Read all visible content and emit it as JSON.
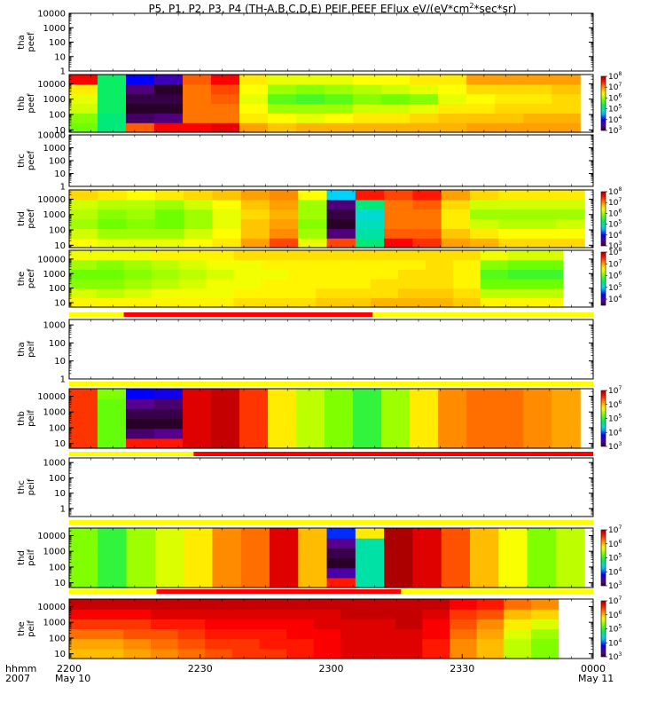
{
  "title_parts": {
    "pre": "P5, P1, P2, P3, P4 (TH-A,B,C,D,E) PEIF,PEEF EFlux eV/(eV*cm",
    "sup": "2",
    "post": "*sec*sr)"
  },
  "time_axis": {
    "label_line1": "hhmm",
    "label_line2": "2007",
    "start_date": "May 10",
    "end_date": "May 11",
    "ticks": [
      "2200",
      "2230",
      "2300",
      "2330",
      "0000"
    ],
    "range_minutes": [
      0,
      120
    ]
  },
  "chart_data": [
    {
      "type": "heatmap",
      "probe": "tha",
      "product": "peef",
      "label_line1": "tha",
      "label_line2": "peef",
      "ylim": [
        1,
        10000
      ],
      "yscale": "log",
      "y_tick_labels": [
        "1",
        "10",
        "100",
        "1000",
        "10000"
      ],
      "has_data": false,
      "colorbar": null,
      "data_end_minutes": null,
      "columns": []
    },
    {
      "type": "heatmap",
      "probe": "thb",
      "product": "peef",
      "label_line1": "thb",
      "label_line2": "peef",
      "ylim": [
        7,
        40000
      ],
      "yscale": "log",
      "y_tick_labels": [
        "10",
        "100",
        "1000",
        "10000"
      ],
      "has_data": true,
      "data_end_minutes": 117,
      "colorbar": {
        "range": [
          1000,
          100000000
        ],
        "tick_exponents": [
          3,
          4,
          5,
          6,
          7,
          8
        ]
      },
      "columns": [
        [
          5.8,
          5.9,
          6.2,
          6.3,
          6.5,
          7.6
        ],
        [
          5.2,
          5.2,
          5.3,
          5.3,
          5.3,
          5.3
        ],
        [
          7.2,
          3.2,
          3.0,
          3.1,
          3.3,
          4.0
        ],
        [
          7.6,
          3.3,
          3.0,
          3.1,
          3.0,
          3.6
        ],
        [
          7.6,
          7.1,
          7.1,
          7.1,
          7.1,
          7.2
        ],
        [
          7.7,
          7.1,
          7.1,
          7.2,
          7.3,
          7.6
        ],
        [
          6.9,
          6.5,
          6.4,
          6.3,
          6.4,
          6.5
        ],
        [
          6.7,
          6.4,
          6.0,
          5.7,
          6.0,
          6.3
        ],
        [
          6.8,
          6.3,
          6.0,
          5.6,
          5.9,
          6.3
        ],
        [
          6.8,
          6.4,
          6.0,
          5.7,
          6.0,
          6.3
        ],
        [
          6.8,
          6.5,
          6.2,
          5.9,
          6.1,
          6.4
        ],
        [
          6.8,
          6.5,
          6.2,
          5.8,
          6.2,
          6.4
        ],
        [
          6.8,
          6.6,
          6.3,
          5.9,
          6.3,
          6.5
        ],
        [
          6.8,
          6.7,
          6.5,
          6.3,
          6.4,
          6.5
        ],
        [
          6.9,
          6.7,
          6.5,
          6.4,
          6.6,
          6.9
        ],
        [
          6.9,
          6.7,
          6.6,
          6.5,
          6.6,
          6.9
        ],
        [
          6.9,
          6.8,
          6.6,
          6.5,
          6.6,
          6.9
        ],
        [
          6.9,
          6.8,
          6.6,
          6.6,
          6.7,
          6.9
        ]
      ]
    },
    {
      "type": "heatmap",
      "probe": "thc",
      "product": "peef",
      "label_line1": "thc",
      "label_line2": "peef",
      "ylim": [
        1,
        10000
      ],
      "yscale": "log",
      "y_tick_labels": [
        "1",
        "10",
        "100",
        "1000",
        "10000"
      ],
      "has_data": false,
      "colorbar": null,
      "data_end_minutes": null,
      "columns": []
    },
    {
      "type": "heatmap",
      "probe": "thd",
      "product": "peef",
      "label_line1": "thd",
      "label_line2": "peef",
      "ylim": [
        7,
        40000
      ],
      "yscale": "log",
      "y_tick_labels": [
        "10",
        "100",
        "1000",
        "10000"
      ],
      "has_data": true,
      "data_end_minutes": 118,
      "colorbar": {
        "range": [
          1000,
          100000000
        ],
        "tick_exponents": [
          3,
          4,
          5,
          6,
          7,
          8
        ]
      },
      "columns": [
        [
          6.4,
          6.2,
          6.0,
          6.1,
          6.2,
          6.6
        ],
        [
          6.3,
          6.0,
          5.8,
          5.9,
          6.1,
          6.5
        ],
        [
          6.3,
          6.0,
          5.9,
          6.0,
          6.1,
          6.4
        ],
        [
          6.3,
          6.0,
          5.8,
          5.8,
          6.0,
          6.5
        ],
        [
          6.4,
          6.2,
          6.0,
          6.0,
          6.2,
          6.6
        ],
        [
          6.5,
          6.4,
          6.3,
          6.3,
          6.4,
          6.7
        ],
        [
          6.9,
          6.7,
          6.7,
          6.6,
          6.7,
          6.9
        ],
        [
          7.3,
          7.0,
          6.9,
          6.8,
          6.9,
          7.0
        ],
        [
          6.3,
          6.0,
          5.9,
          6.0,
          6.0,
          6.4
        ],
        [
          7.3,
          3.3,
          3.0,
          3.1,
          3.3,
          4.6
        ],
        [
          5.2,
          5.0,
          4.9,
          4.8,
          5.2,
          7.5
        ],
        [
          7.6,
          7.2,
          7.1,
          7.1,
          7.1,
          7.3
        ],
        [
          7.4,
          7.2,
          7.1,
          7.1,
          7.2,
          7.5
        ],
        [
          6.9,
          6.7,
          6.5,
          6.5,
          6.6,
          6.9
        ],
        [
          6.8,
          6.5,
          6.2,
          6.0,
          6.2,
          6.6
        ],
        [
          6.6,
          6.4,
          6.1,
          6.0,
          6.2,
          6.5
        ],
        [
          6.6,
          6.4,
          6.1,
          6.0,
          6.2,
          6.5
        ],
        [
          6.6,
          6.4,
          6.2,
          6.0,
          6.2,
          6.5
        ]
      ]
    },
    {
      "type": "heatmap",
      "probe": "the",
      "product": "peef",
      "label_line1": "the",
      "label_line2": "peef",
      "ylim": [
        5,
        40000
      ],
      "yscale": "log",
      "y_tick_labels": [
        "10",
        "100",
        "1000",
        "10000"
      ],
      "has_data": true,
      "data_end_minutes": 113,
      "colorbar": {
        "range": [
          3000,
          100000000
        ],
        "tick_exponents": [
          4,
          5,
          6,
          7,
          8
        ]
      },
      "columns": [
        [
          6.6,
          6.4,
          6.1,
          6.0,
          6.2,
          6.5
        ],
        [
          6.6,
          6.3,
          6.1,
          6.0,
          6.1,
          6.5
        ],
        [
          6.6,
          6.4,
          6.2,
          6.1,
          6.2,
          6.5
        ],
        [
          6.6,
          6.5,
          6.3,
          6.2,
          6.3,
          6.6
        ],
        [
          6.6,
          6.5,
          6.4,
          6.3,
          6.4,
          6.6
        ],
        [
          6.6,
          6.5,
          6.5,
          6.4,
          6.5,
          6.6
        ],
        [
          6.7,
          6.6,
          6.5,
          6.5,
          6.5,
          6.7
        ],
        [
          6.7,
          6.6,
          6.6,
          6.5,
          6.6,
          6.7
        ],
        [
          6.7,
          6.6,
          6.6,
          6.6,
          6.6,
          6.7
        ],
        [
          6.8,
          6.7,
          6.6,
          6.6,
          6.6,
          6.7
        ],
        [
          6.8,
          6.7,
          6.6,
          6.6,
          6.6,
          6.7
        ],
        [
          6.9,
          6.7,
          6.7,
          6.6,
          6.6,
          6.7
        ],
        [
          6.9,
          6.8,
          6.7,
          6.7,
          6.6,
          6.7
        ],
        [
          6.9,
          6.8,
          6.7,
          6.7,
          6.7,
          6.7
        ],
        [
          6.8,
          6.7,
          6.6,
          6.6,
          6.6,
          6.7
        ],
        [
          6.6,
          6.3,
          6.0,
          5.9,
          6.1,
          6.5
        ],
        [
          6.6,
          6.3,
          6.0,
          5.8,
          6.0,
          6.4
        ],
        [
          6.6,
          6.3,
          6.0,
          5.8,
          6.0,
          6.4
        ]
      ]
    },
    {
      "type": "heatmap",
      "probe": "tha",
      "product": "peif",
      "label_line1": "tha",
      "label_line2": "peif",
      "ylim": [
        1,
        2000
      ],
      "yscale": "log",
      "y_tick_labels": [
        "1",
        "10",
        "100",
        "1000"
      ],
      "has_data": false,
      "colorbar": null,
      "data_end_minutes": null,
      "columns": []
    },
    {
      "type": "heatmap",
      "probe": "thb",
      "product": "peif",
      "label_line1": "thb",
      "label_line2": "peif",
      "ylim": [
        5,
        30000
      ],
      "yscale": "log",
      "y_tick_labels": [
        "10",
        "100",
        "1000",
        "10000"
      ],
      "has_data": true,
      "data_end_minutes": 117,
      "colorbar": {
        "range": [
          1000,
          10000000
        ],
        "tick_exponents": [
          3,
          4,
          5,
          6,
          7
        ]
      },
      "columns": [
        [
          6.5,
          6.5,
          6.5,
          6.5,
          6.5,
          6.5
        ],
        [
          5.2,
          5.2,
          5.2,
          5.2,
          5.2,
          5.3
        ],
        [
          6.6,
          3.2,
          3.0,
          3.1,
          3.3,
          3.8
        ],
        [
          6.6,
          3.3,
          3.0,
          3.1,
          3.2,
          3.7
        ],
        [
          6.8,
          6.8,
          6.8,
          6.8,
          6.8,
          6.8
        ],
        [
          6.9,
          6.9,
          6.9,
          6.9,
          6.9,
          6.9
        ],
        [
          6.5,
          6.5,
          6.5,
          6.5,
          6.5,
          6.5
        ],
        [
          5.8,
          5.8,
          5.8,
          5.8,
          5.8,
          5.8
        ],
        [
          5.5,
          5.5,
          5.5,
          5.5,
          5.5,
          5.5
        ],
        [
          5.3,
          5.3,
          5.3,
          5.3,
          5.3,
          5.3
        ],
        [
          5.0,
          5.0,
          5.0,
          5.0,
          5.0,
          5.0
        ],
        [
          5.4,
          5.4,
          5.4,
          5.4,
          5.4,
          5.4
        ],
        [
          5.8,
          5.8,
          5.8,
          5.8,
          5.8,
          5.8
        ],
        [
          6.2,
          6.2,
          6.2,
          6.2,
          6.2,
          6.2
        ],
        [
          6.3,
          6.3,
          6.3,
          6.3,
          6.3,
          6.3
        ],
        [
          6.3,
          6.3,
          6.3,
          6.3,
          6.3,
          6.3
        ],
        [
          6.2,
          6.2,
          6.2,
          6.2,
          6.2,
          6.2
        ],
        [
          6.1,
          6.1,
          6.1,
          6.1,
          6.1,
          6.1
        ]
      ]
    },
    {
      "type": "heatmap",
      "probe": "thc",
      "product": "peif",
      "label_line1": "thc",
      "label_line2": "peif",
      "ylim": [
        0.3,
        2000
      ],
      "yscale": "log",
      "y_tick_labels": [
        "1",
        "10",
        "100",
        "1000"
      ],
      "has_data": false,
      "colorbar": null,
      "data_end_minutes": null,
      "columns": []
    },
    {
      "type": "heatmap",
      "probe": "thd",
      "product": "peif",
      "label_line1": "thd",
      "label_line2": "peif",
      "ylim": [
        5,
        30000
      ],
      "yscale": "log",
      "y_tick_labels": [
        "10",
        "100",
        "1000",
        "10000"
      ],
      "has_data": true,
      "data_end_minutes": 118,
      "colorbar": {
        "range": [
          1000,
          10000000
        ],
        "tick_exponents": [
          3,
          4,
          5,
          6,
          7
        ]
      },
      "columns": [
        [
          5.3,
          5.3,
          5.3,
          5.3,
          5.3,
          5.3
        ],
        [
          5.0,
          5.0,
          5.0,
          5.0,
          5.0,
          5.0
        ],
        [
          5.4,
          5.4,
          5.4,
          5.4,
          5.4,
          5.4
        ],
        [
          5.6,
          5.6,
          5.6,
          5.6,
          5.6,
          5.6
        ],
        [
          5.8,
          5.8,
          5.8,
          5.8,
          5.8,
          5.8
        ],
        [
          6.2,
          6.2,
          6.2,
          6.2,
          6.2,
          6.2
        ],
        [
          6.3,
          6.3,
          6.3,
          6.3,
          6.3,
          6.3
        ],
        [
          6.8,
          6.8,
          6.8,
          6.8,
          6.8,
          6.8
        ],
        [
          6.0,
          6.0,
          6.0,
          6.0,
          6.0,
          6.0
        ],
        [
          6.6,
          3.4,
          3.0,
          3.1,
          3.3,
          3.9
        ],
        [
          4.6,
          4.6,
          4.6,
          4.6,
          4.6,
          5.8
        ],
        [
          7.0,
          7.0,
          7.0,
          7.0,
          7.0,
          7.0
        ],
        [
          6.8,
          6.8,
          6.8,
          6.8,
          6.8,
          6.8
        ],
        [
          6.4,
          6.4,
          6.4,
          6.4,
          6.4,
          6.4
        ],
        [
          6.0,
          6.0,
          6.0,
          6.0,
          6.0,
          6.0
        ],
        [
          5.7,
          5.7,
          5.7,
          5.7,
          5.7,
          5.7
        ],
        [
          5.3,
          5.3,
          5.3,
          5.3,
          5.3,
          5.3
        ],
        [
          5.5,
          5.5,
          5.5,
          5.5,
          5.5,
          5.5
        ]
      ]
    },
    {
      "type": "heatmap",
      "probe": "the",
      "product": "peif",
      "label_line1": "the",
      "label_line2": "peif",
      "ylim": [
        5,
        30000
      ],
      "yscale": "log",
      "y_tick_labels": [
        "10",
        "100",
        "1000",
        "10000"
      ],
      "has_data": true,
      "data_end_minutes": 112,
      "colorbar": {
        "range": [
          1000,
          10000000
        ],
        "tick_exponents": [
          3,
          4,
          5,
          6,
          7
        ]
      },
      "columns": [
        [
          6.0,
          6.1,
          6.3,
          6.5,
          6.7,
          6.9
        ],
        [
          6.0,
          6.1,
          6.3,
          6.5,
          6.7,
          6.9
        ],
        [
          6.1,
          6.2,
          6.4,
          6.5,
          6.7,
          6.9
        ],
        [
          6.2,
          6.3,
          6.4,
          6.6,
          6.8,
          6.9
        ],
        [
          6.3,
          6.4,
          6.5,
          6.6,
          6.8,
          6.9
        ],
        [
          6.4,
          6.5,
          6.6,
          6.7,
          6.8,
          6.9
        ],
        [
          6.5,
          6.5,
          6.6,
          6.7,
          6.8,
          6.9
        ],
        [
          6.5,
          6.6,
          6.6,
          6.7,
          6.8,
          6.9
        ],
        [
          6.6,
          6.6,
          6.7,
          6.7,
          6.8,
          6.9
        ],
        [
          6.7,
          6.7,
          6.7,
          6.8,
          6.8,
          6.9
        ],
        [
          6.8,
          6.8,
          6.8,
          6.8,
          6.9,
          6.9
        ],
        [
          6.8,
          6.8,
          6.8,
          6.8,
          6.9,
          6.9
        ],
        [
          6.8,
          6.8,
          6.8,
          6.9,
          6.9,
          6.9
        ],
        [
          6.6,
          6.6,
          6.7,
          6.7,
          6.8,
          6.9
        ],
        [
          6.2,
          6.2,
          6.3,
          6.4,
          6.5,
          6.7
        ],
        [
          6.0,
          6.0,
          6.1,
          6.2,
          6.4,
          6.6
        ],
        [
          5.5,
          5.5,
          5.6,
          5.8,
          6.0,
          6.3
        ],
        [
          5.3,
          5.3,
          5.4,
          5.6,
          5.9,
          6.2
        ]
      ]
    }
  ],
  "mode_bars": [
    {
      "between": "the-peef/tha-peif",
      "segments": [
        {
          "from": 0,
          "to": 120,
          "color": "#ffff00"
        },
        {
          "from": 12.5,
          "to": 69.5,
          "color": "#ff0000"
        }
      ]
    },
    {
      "between": "tha-peif/thb-peif",
      "segments": [
        {
          "from": 0,
          "to": 120,
          "color": "#ffff00"
        }
      ]
    },
    {
      "between": "thb-peif/thc-peif",
      "segments": [
        {
          "from": 0,
          "to": 28.5,
          "color": "#ffff00"
        },
        {
          "from": 28.5,
          "to": 120,
          "color": "#ff0000"
        }
      ]
    },
    {
      "between": "thc-peif/thd-peif",
      "segments": [
        {
          "from": 0,
          "to": 120,
          "color": "#ffff00"
        }
      ]
    },
    {
      "between": "thd-peif/the-peif",
      "segments": [
        {
          "from": 0,
          "to": 120,
          "color": "#ffff00"
        },
        {
          "from": 20,
          "to": 76,
          "color": "#ff0000"
        }
      ]
    }
  ]
}
